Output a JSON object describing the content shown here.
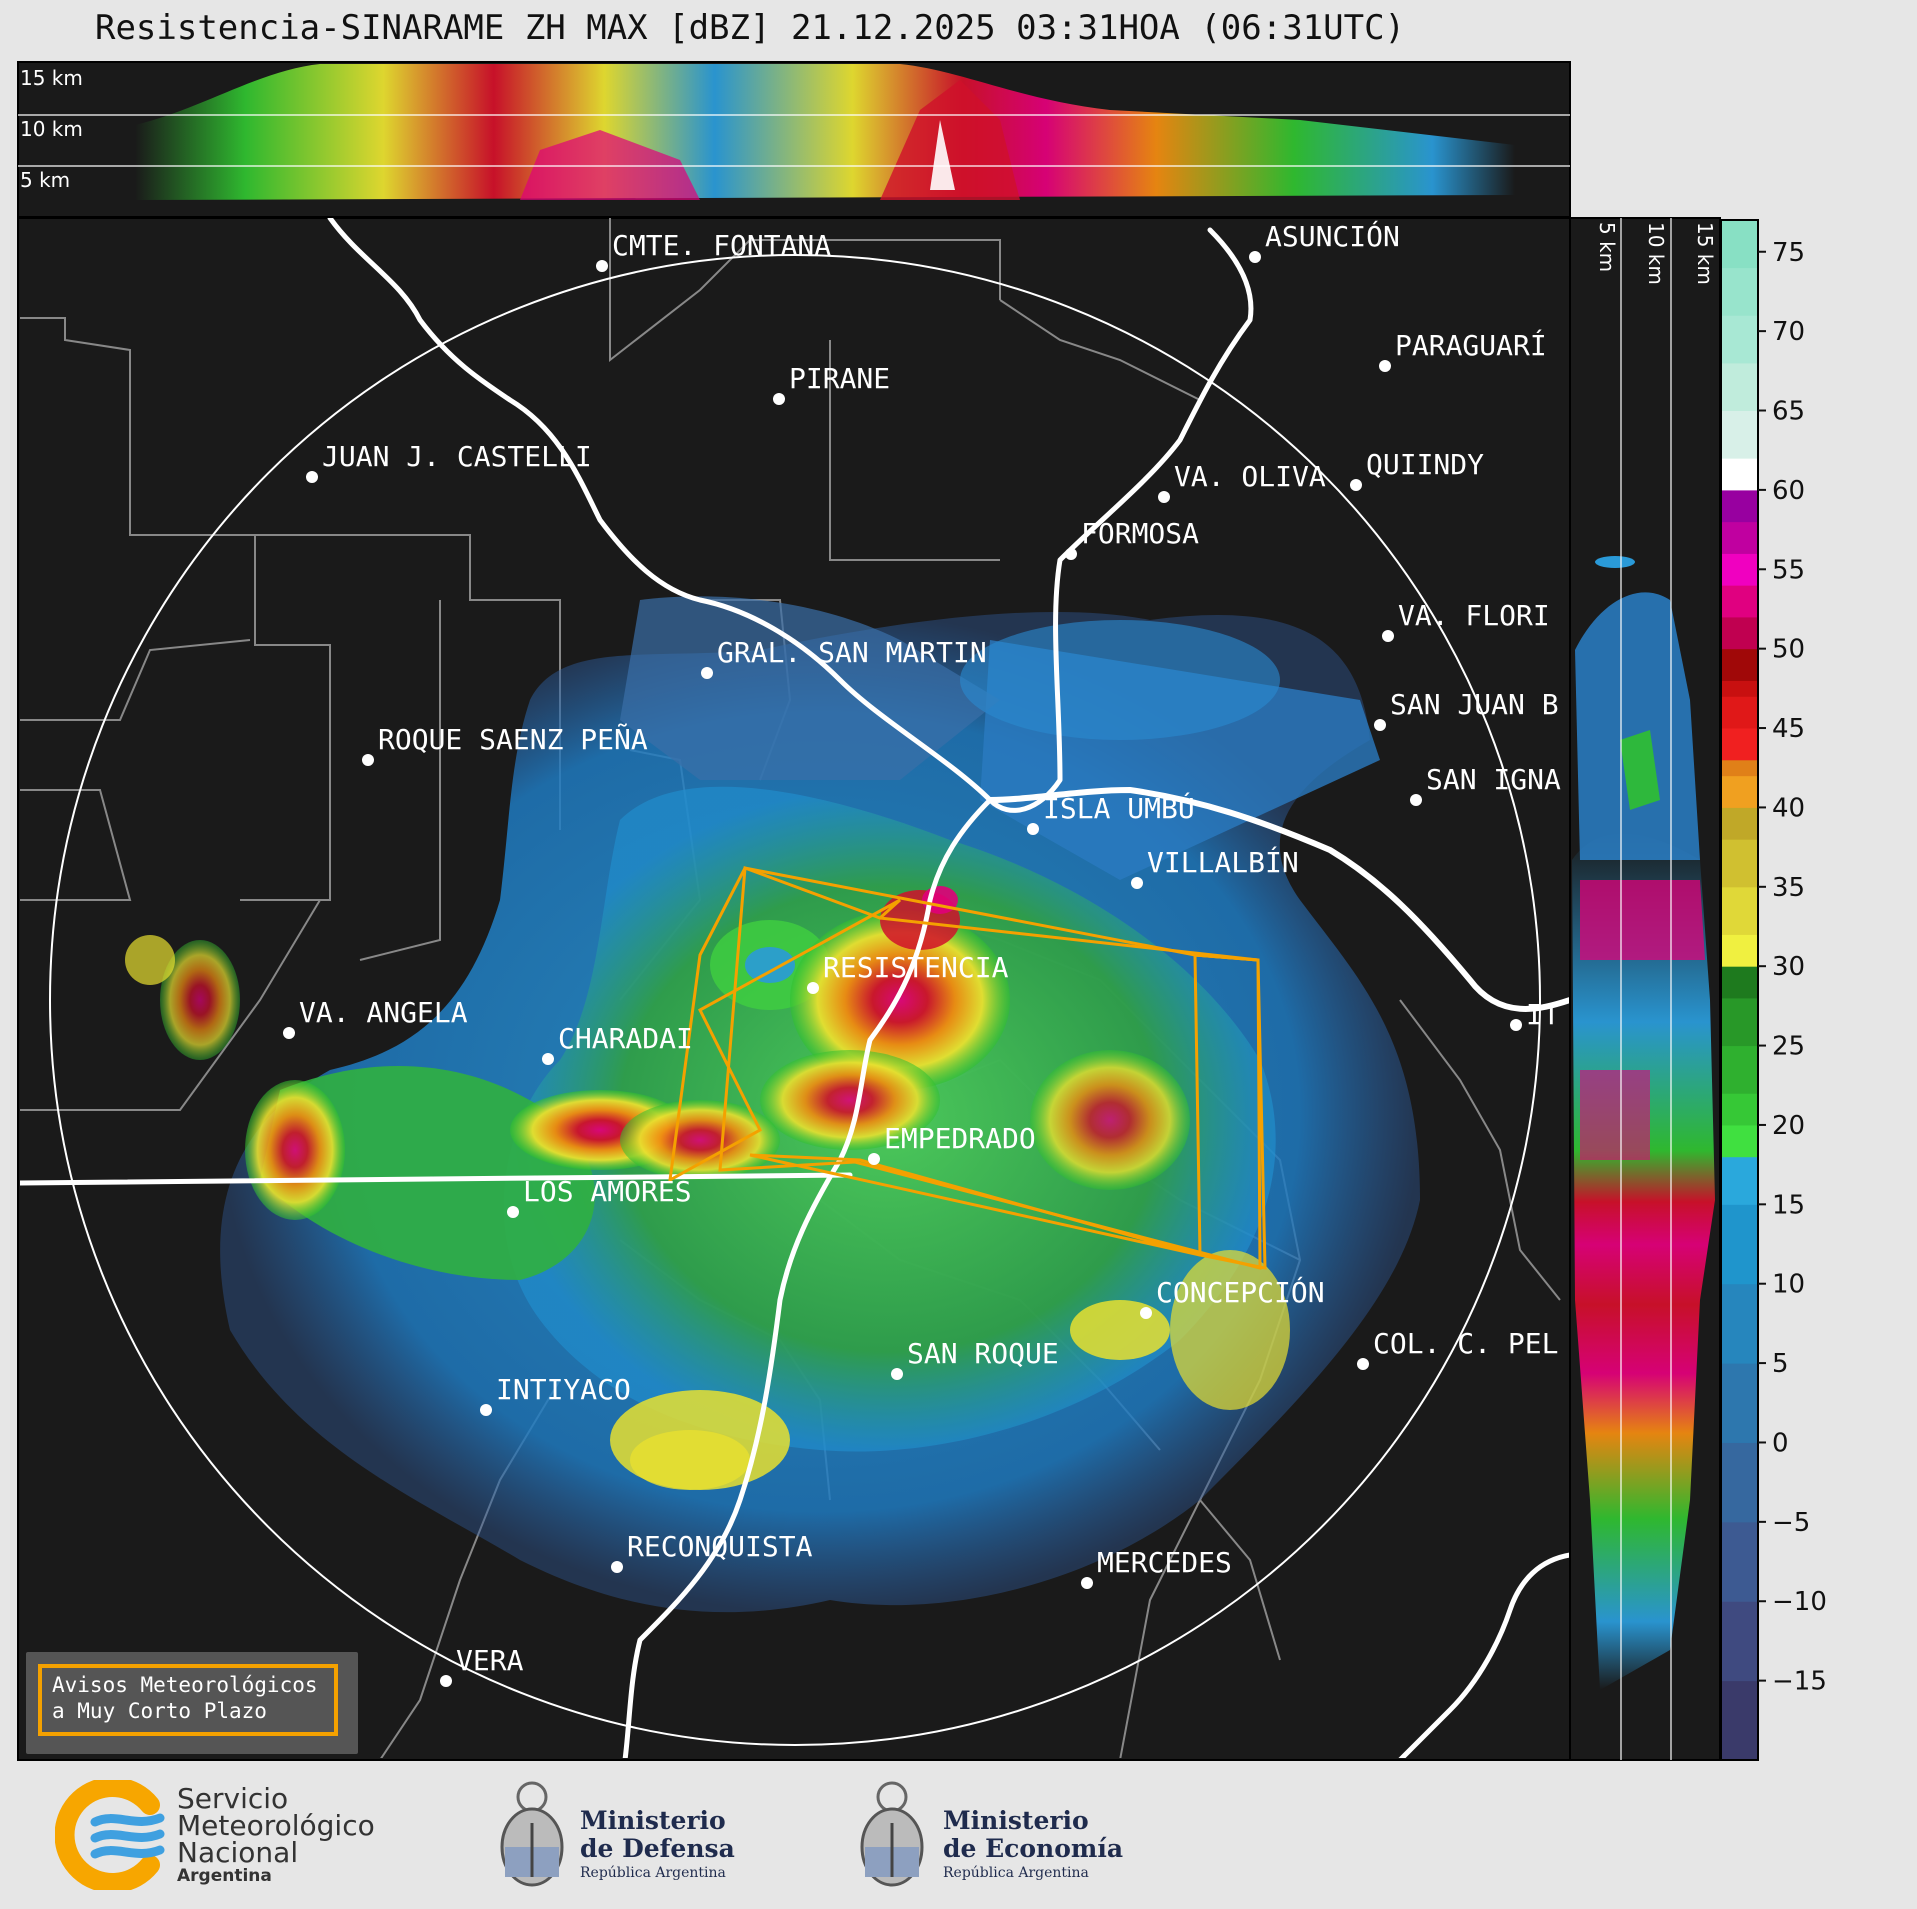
{
  "title": "Resistencia-SINARAME ZH MAX [dBZ] 21.12.2025 03:31HOA (06:31UTC)",
  "altitude_top": {
    "km15": "15 km",
    "km10": "10 km",
    "km5": "5 km"
  },
  "altitude_side": {
    "km5": "5 km",
    "km10": "10 km",
    "km15": "15 km"
  },
  "colorbar": {
    "unit": "dBZ",
    "ticks": [
      "75",
      "70",
      "65",
      "60",
      "55",
      "50",
      "45",
      "40",
      "35",
      "30",
      "25",
      "20",
      "15",
      "10",
      "5",
      "0",
      "−5",
      "−10",
      "−15"
    ],
    "range": [
      -20,
      77
    ]
  },
  "cities": [
    {
      "name": "CMTE. FONTANA"
    },
    {
      "name": "ASUNCIÓN"
    },
    {
      "name": "PARAGUARÍ"
    },
    {
      "name": "PIRANE"
    },
    {
      "name": "JUAN J. CASTELLI"
    },
    {
      "name": "VA. OLIVA"
    },
    {
      "name": "QUIINDY"
    },
    {
      "name": "FORMOSA"
    },
    {
      "name": "VA. FLORI"
    },
    {
      "name": "GRAL. SAN MARTIN"
    },
    {
      "name": "SAN JUAN B"
    },
    {
      "name": "ROQUE SAENZ PEÑA"
    },
    {
      "name": "SAN IGNA"
    },
    {
      "name": "ISLA UMBÚ"
    },
    {
      "name": "VILLALBÍN"
    },
    {
      "name": "RESISTENCIA"
    },
    {
      "name": "IT"
    },
    {
      "name": "VA. ANGELA"
    },
    {
      "name": "CHARADAI"
    },
    {
      "name": "EMPEDRADO"
    },
    {
      "name": "LOS AMORES"
    },
    {
      "name": "CONCEPCIÓN"
    },
    {
      "name": "SAN ROQUE"
    },
    {
      "name": "COL. C. PEL"
    },
    {
      "name": "INTIYACO"
    },
    {
      "name": "RECONQUISTA"
    },
    {
      "name": "MERCEDES"
    },
    {
      "name": "VERA"
    }
  ],
  "avisos": {
    "line1": "Avisos Meteorológicos",
    "line2": "a Muy Corto Plazo"
  },
  "logos": {
    "smn": {
      "line1": "Servicio",
      "line2": "Meteorológico",
      "line3": "Nacional",
      "line4": "Argentina"
    },
    "defensa": {
      "line1": "Ministerio",
      "line2": "de Defensa",
      "line3": "República Argentina"
    },
    "economia": {
      "line1": "Ministerio",
      "line2": "de Economía",
      "line3": "República Argentina"
    }
  },
  "colors": {
    "background": "#e6e6e6",
    "map": "#1a1a1a",
    "warning": "#f4a100",
    "river": "#ffffff"
  }
}
